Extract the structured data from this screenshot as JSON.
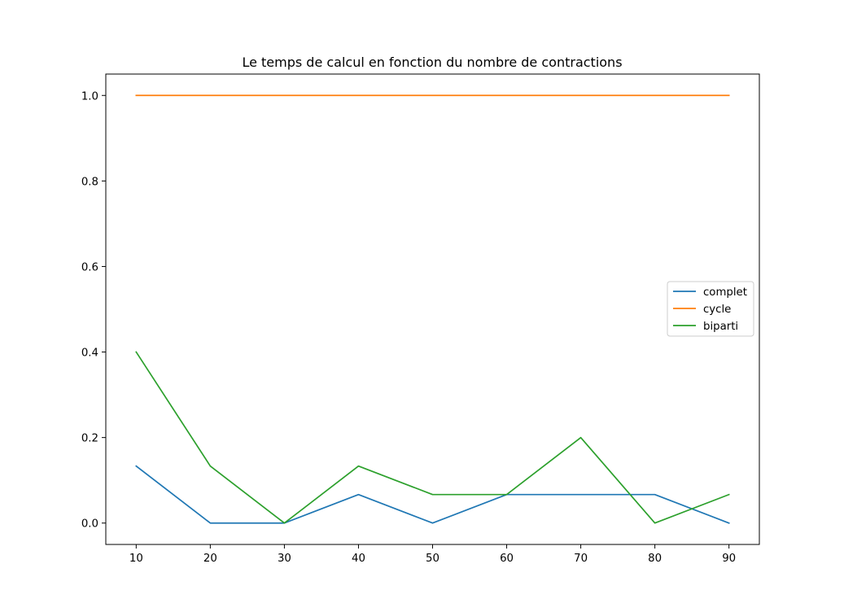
{
  "chart_data": {
    "type": "line",
    "title": "Le temps de calcul en fonction du nombre de contractions",
    "xlabel": "",
    "ylabel": "",
    "x": [
      10,
      20,
      30,
      40,
      50,
      60,
      70,
      80,
      90
    ],
    "xlim": [
      5.9,
      94.1
    ],
    "ylim": [
      -0.05,
      1.05
    ],
    "xticks": [
      10,
      20,
      30,
      40,
      50,
      60,
      70,
      80,
      90
    ],
    "yticks": [
      0.0,
      0.2,
      0.4,
      0.6,
      0.8,
      1.0
    ],
    "ytick_labels": [
      "0.0",
      "0.2",
      "0.4",
      "0.6",
      "0.8",
      "1.0"
    ],
    "grid": false,
    "legend_position": "center-right",
    "series": [
      {
        "name": "complet",
        "color": "#1f77b4",
        "values": [
          0.1333,
          0.0,
          0.0,
          0.0667,
          0.0,
          0.0667,
          0.0667,
          0.0667,
          0.0
        ]
      },
      {
        "name": "cycle",
        "color": "#ff7f0e",
        "values": [
          1.0,
          1.0,
          1.0,
          1.0,
          1.0,
          1.0,
          1.0,
          1.0,
          1.0
        ]
      },
      {
        "name": "biparti",
        "color": "#2ca02c",
        "values": [
          0.4,
          0.1333,
          0.0,
          0.1333,
          0.0667,
          0.0667,
          0.2,
          0.0,
          0.0667
        ]
      }
    ]
  }
}
